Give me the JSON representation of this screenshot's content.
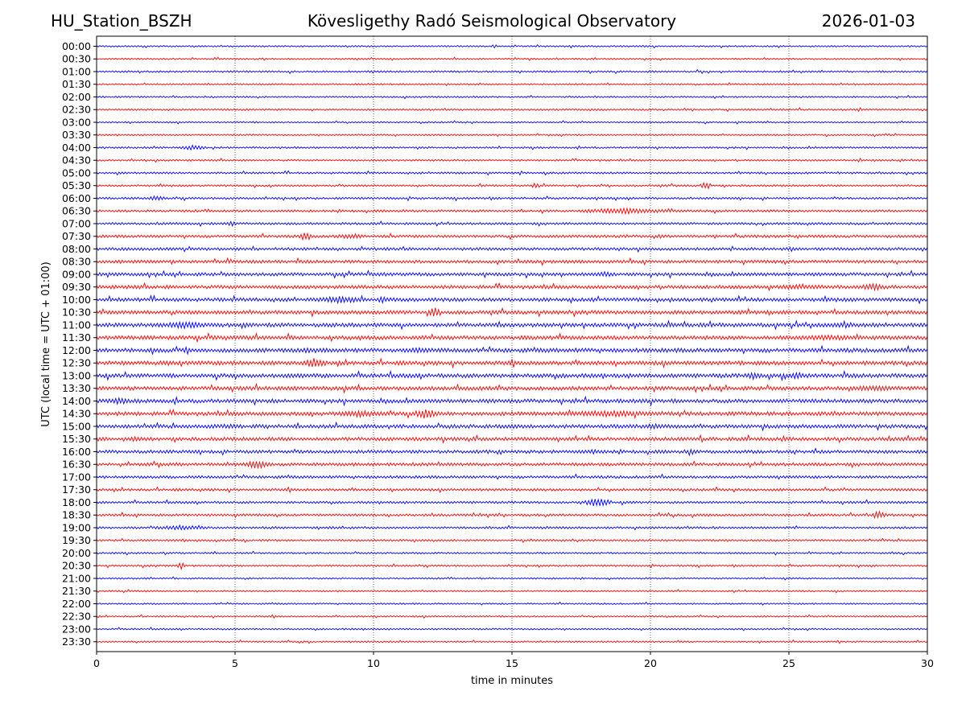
{
  "header": {
    "station": "HU_Station_BSZH",
    "title": "Kövesligethy Radó Seismological Observatory",
    "date": "2026-01-03"
  },
  "chart_data": {
    "type": "line",
    "subtype": "helicorder",
    "xlabel": "time in minutes",
    "ylabel": "UTC (local time = UTC + 01:00)",
    "xlim": [
      0,
      30
    ],
    "xticks": [
      0,
      5,
      10,
      15,
      20,
      25,
      30
    ],
    "grid_x": [
      5,
      10,
      15,
      20,
      25
    ],
    "colors": [
      "#0000ff",
      "#ff0000"
    ],
    "rows": [
      "00:00",
      "00:30",
      "01:00",
      "01:30",
      "02:00",
      "02:30",
      "03:00",
      "03:30",
      "04:00",
      "04:30",
      "05:00",
      "05:30",
      "06:00",
      "06:30",
      "07:00",
      "07:30",
      "08:00",
      "08:30",
      "09:00",
      "09:30",
      "10:00",
      "10:30",
      "11:00",
      "11:30",
      "12:00",
      "12:30",
      "13:00",
      "13:30",
      "14:00",
      "14:30",
      "15:00",
      "15:30",
      "16:00",
      "16:30",
      "17:00",
      "17:30",
      "18:00",
      "18:30",
      "19:00",
      "19:30",
      "20:00",
      "20:30",
      "21:00",
      "21:30",
      "22:00",
      "22:30",
      "23:00",
      "23:30"
    ],
    "noise_levels": [
      0.8,
      0.8,
      0.9,
      0.8,
      0.8,
      0.9,
      0.8,
      0.8,
      0.9,
      0.9,
      1.0,
      1.0,
      1.1,
      1.2,
      1.2,
      1.4,
      1.5,
      1.6,
      1.7,
      1.8,
      1.9,
      1.9,
      2.0,
      2.0,
      2.1,
      2.1,
      2.1,
      2.0,
      2.0,
      2.0,
      1.9,
      1.8,
      1.7,
      1.6,
      1.4,
      1.3,
      1.2,
      1.2,
      1.1,
      1.0,
      0.9,
      0.9,
      0.8,
      0.8,
      0.8,
      0.8,
      0.8,
      0.8
    ],
    "events": [
      {
        "row": 8,
        "start": 3.0,
        "end": 4.0,
        "amp": 3
      },
      {
        "row": 11,
        "start": 15.7,
        "end": 16.0,
        "amp": 4
      },
      {
        "row": 11,
        "start": 21.8,
        "end": 22.2,
        "amp": 5
      },
      {
        "row": 12,
        "start": 1.8,
        "end": 2.5,
        "amp": 3
      },
      {
        "row": 13,
        "start": 17.4,
        "end": 20.8,
        "amp": 3.5
      },
      {
        "row": 14,
        "start": 4.6,
        "end": 5.1,
        "amp": 3
      },
      {
        "row": 15,
        "start": 7.3,
        "end": 7.8,
        "amp": 5
      },
      {
        "row": 15,
        "start": 8.5,
        "end": 9.8,
        "amp": 3
      },
      {
        "row": 18,
        "start": 17.8,
        "end": 18.9,
        "amp": 3
      },
      {
        "row": 19,
        "start": 24.0,
        "end": 27.0,
        "amp": 3
      },
      {
        "row": 19,
        "start": 27.5,
        "end": 28.6,
        "amp": 4
      },
      {
        "row": 20,
        "start": 7.8,
        "end": 9.8,
        "amp": 4
      },
      {
        "row": 20,
        "start": 10.1,
        "end": 10.6,
        "amp": 4
      },
      {
        "row": 21,
        "start": 12.0,
        "end": 12.4,
        "amp": 6
      },
      {
        "row": 22,
        "start": 2.0,
        "end": 4.2,
        "amp": 4
      },
      {
        "row": 22,
        "start": 26.5,
        "end": 27.8,
        "amp": 3
      },
      {
        "row": 23,
        "start": 24.0,
        "end": 28.8,
        "amp": 3
      },
      {
        "row": 24,
        "start": 6.5,
        "end": 9.0,
        "amp": 3
      },
      {
        "row": 24,
        "start": 10.8,
        "end": 12.5,
        "amp": 3
      },
      {
        "row": 25,
        "start": 7.5,
        "end": 8.3,
        "amp": 6
      },
      {
        "row": 25,
        "start": 2.2,
        "end": 3.0,
        "amp": 3
      },
      {
        "row": 26,
        "start": 23.5,
        "end": 24.0,
        "amp": 5
      },
      {
        "row": 26,
        "start": 25.0,
        "end": 25.6,
        "amp": 4
      },
      {
        "row": 27,
        "start": 26.5,
        "end": 29.5,
        "amp": 3
      },
      {
        "row": 28,
        "start": 0.3,
        "end": 1.3,
        "amp": 4
      },
      {
        "row": 29,
        "start": 8.5,
        "end": 10.5,
        "amp": 4
      },
      {
        "row": 29,
        "start": 11.4,
        "end": 12.3,
        "amp": 6
      },
      {
        "row": 29,
        "start": 16.6,
        "end": 20.5,
        "amp": 4
      },
      {
        "row": 30,
        "start": 3.8,
        "end": 5.5,
        "amp": 3
      },
      {
        "row": 30,
        "start": 14.8,
        "end": 15.5,
        "amp": 3
      },
      {
        "row": 30,
        "start": 19.5,
        "end": 20.8,
        "amp": 3
      },
      {
        "row": 31,
        "start": 1.0,
        "end": 1.7,
        "amp": 3
      },
      {
        "row": 32,
        "start": 17.5,
        "end": 18.3,
        "amp": 3
      },
      {
        "row": 32,
        "start": 21.2,
        "end": 21.8,
        "amp": 3
      },
      {
        "row": 33,
        "start": 5.3,
        "end": 6.3,
        "amp": 5
      },
      {
        "row": 36,
        "start": 17.6,
        "end": 18.6,
        "amp": 5
      },
      {
        "row": 37,
        "start": 28.0,
        "end": 28.5,
        "amp": 5
      },
      {
        "row": 38,
        "start": 2.0,
        "end": 4.0,
        "amp": 3
      },
      {
        "row": 41,
        "start": 2.9,
        "end": 3.2,
        "amp": 4
      }
    ]
  }
}
